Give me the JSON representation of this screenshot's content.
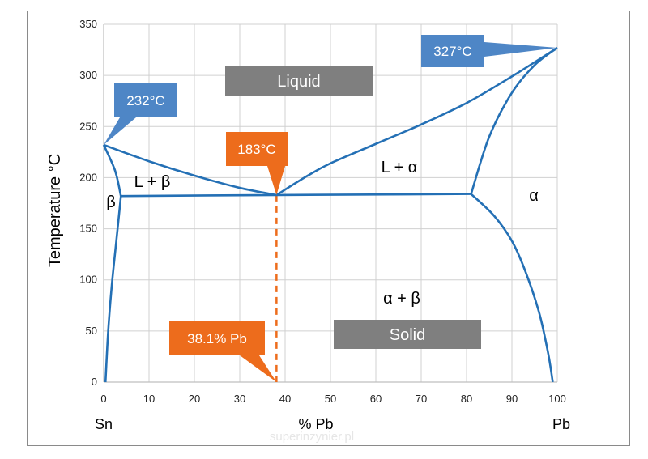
{
  "chart_data": {
    "type": "line",
    "title": "",
    "xlabel": "% Pb",
    "ylabel": "Temperature °C",
    "xlim": [
      0,
      100
    ],
    "ylim": [
      0,
      350
    ],
    "x_ticks": [
      0,
      10,
      20,
      30,
      40,
      50,
      60,
      70,
      80,
      90,
      100
    ],
    "y_ticks": [
      0,
      50,
      100,
      150,
      200,
      250,
      300,
      350
    ],
    "grid": true,
    "end_labels": {
      "left": "Sn",
      "right": "Pb"
    },
    "line_color": "#2470b5",
    "series": [
      {
        "id": "liquidus-left",
        "points": [
          [
            0,
            232
          ],
          [
            10,
            216
          ],
          [
            20,
            202
          ],
          [
            30,
            190
          ],
          [
            38.1,
            183
          ]
        ]
      },
      {
        "id": "liquidus-right",
        "points": [
          [
            38.1,
            183
          ],
          [
            45,
            202
          ],
          [
            50,
            214
          ],
          [
            60,
            233
          ],
          [
            70,
            252
          ],
          [
            80,
            273
          ],
          [
            90,
            299
          ],
          [
            100,
            327
          ]
        ]
      },
      {
        "id": "eutectic-line",
        "points": [
          [
            3.8,
            182
          ],
          [
            38.1,
            183
          ],
          [
            81,
            184
          ]
        ]
      },
      {
        "id": "solidus-beta",
        "points": [
          [
            0,
            232
          ],
          [
            2.5,
            207
          ],
          [
            3.8,
            182
          ]
        ]
      },
      {
        "id": "solvus-beta",
        "points": [
          [
            3.8,
            182
          ],
          [
            3.3,
            160
          ],
          [
            2.6,
            130
          ],
          [
            1.8,
            95
          ],
          [
            1.0,
            50
          ],
          [
            0.4,
            0
          ]
        ]
      },
      {
        "id": "solidus-alpha",
        "points": [
          [
            81,
            184
          ],
          [
            85,
            240
          ],
          [
            90,
            283
          ],
          [
            95,
            310
          ],
          [
            100,
            327
          ]
        ]
      },
      {
        "id": "solvus-alpha",
        "points": [
          [
            81,
            184
          ],
          [
            86,
            163
          ],
          [
            90,
            138
          ],
          [
            93,
            108
          ],
          [
            96,
            68
          ],
          [
            98,
            28
          ],
          [
            99,
            0
          ]
        ]
      }
    ],
    "eutectic_marker": {
      "x": 38.1,
      "y_top": 183,
      "y_bottom": 0,
      "color": "#ed6c1c",
      "style": "dashed"
    },
    "regions": [
      {
        "label": "Liquid",
        "boxed": true
      },
      {
        "label": "Solid",
        "boxed": true
      },
      {
        "label": "L + β"
      },
      {
        "label": "L + α"
      },
      {
        "label": "β"
      },
      {
        "label": "α"
      },
      {
        "label": "α + β"
      }
    ],
    "callouts": [
      {
        "label": "232°C",
        "x": 0,
        "y": 232,
        "color": "#4e86c6"
      },
      {
        "label": "327°C",
        "x": 100,
        "y": 327,
        "color": "#4e86c6"
      },
      {
        "label": "183°C",
        "x": 38.1,
        "y": 183,
        "color": "#ed6c1c"
      },
      {
        "label": "38.1% Pb",
        "x": 38.1,
        "y": 0,
        "color": "#ed6c1c"
      }
    ],
    "region_box_color": "#7f7f7f",
    "watermark": "superinzynier.pl"
  }
}
